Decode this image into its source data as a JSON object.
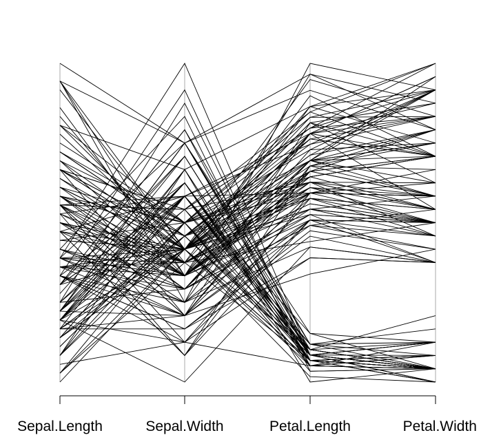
{
  "chart_data": {
    "type": "parallel-coordinates",
    "title": "",
    "xlabel": "",
    "ylabel": "",
    "axes": [
      "Sepal.Length",
      "Sepal.Width",
      "Petal.Length",
      "Petal.Width"
    ],
    "ranges": [
      [
        4.3,
        7.9
      ],
      [
        2.0,
        4.4
      ],
      [
        1.0,
        6.9
      ],
      [
        0.1,
        2.5
      ]
    ],
    "grid": false,
    "legend": "none",
    "colors": {
      "line": "#000000",
      "axis": "#aaaaaa",
      "frame": "#000000",
      "background": "#ffffff"
    },
    "rows": [
      [
        5.1,
        3.5,
        1.4,
        0.2
      ],
      [
        4.9,
        3.0,
        1.4,
        0.2
      ],
      [
        4.7,
        3.2,
        1.3,
        0.2
      ],
      [
        4.6,
        3.1,
        1.5,
        0.2
      ],
      [
        5.0,
        3.6,
        1.4,
        0.2
      ],
      [
        5.4,
        3.9,
        1.7,
        0.4
      ],
      [
        4.6,
        3.4,
        1.4,
        0.3
      ],
      [
        5.0,
        3.4,
        1.5,
        0.2
      ],
      [
        4.4,
        2.9,
        1.4,
        0.2
      ],
      [
        4.9,
        3.1,
        1.5,
        0.1
      ],
      [
        5.4,
        3.7,
        1.5,
        0.2
      ],
      [
        4.8,
        3.4,
        1.6,
        0.2
      ],
      [
        4.8,
        3.0,
        1.4,
        0.1
      ],
      [
        4.3,
        3.0,
        1.1,
        0.1
      ],
      [
        5.8,
        4.0,
        1.2,
        0.2
      ],
      [
        5.7,
        4.4,
        1.5,
        0.4
      ],
      [
        5.4,
        3.9,
        1.3,
        0.4
      ],
      [
        5.1,
        3.5,
        1.4,
        0.3
      ],
      [
        5.7,
        3.8,
        1.7,
        0.3
      ],
      [
        5.1,
        3.8,
        1.5,
        0.3
      ],
      [
        5.4,
        3.4,
        1.7,
        0.2
      ],
      [
        5.1,
        3.7,
        1.5,
        0.4
      ],
      [
        4.6,
        3.6,
        1.0,
        0.2
      ],
      [
        5.1,
        3.3,
        1.7,
        0.5
      ],
      [
        4.8,
        3.4,
        1.9,
        0.2
      ],
      [
        5.0,
        3.0,
        1.6,
        0.2
      ],
      [
        5.0,
        3.4,
        1.6,
        0.4
      ],
      [
        5.2,
        3.5,
        1.5,
        0.2
      ],
      [
        5.2,
        3.4,
        1.4,
        0.2
      ],
      [
        4.7,
        3.2,
        1.6,
        0.2
      ],
      [
        4.8,
        3.1,
        1.6,
        0.2
      ],
      [
        5.4,
        3.4,
        1.5,
        0.4
      ],
      [
        5.2,
        4.1,
        1.5,
        0.1
      ],
      [
        5.5,
        4.2,
        1.4,
        0.2
      ],
      [
        4.9,
        3.1,
        1.5,
        0.2
      ],
      [
        5.0,
        3.2,
        1.2,
        0.2
      ],
      [
        5.5,
        3.5,
        1.3,
        0.2
      ],
      [
        4.9,
        3.6,
        1.4,
        0.1
      ],
      [
        4.4,
        3.0,
        1.3,
        0.2
      ],
      [
        5.1,
        3.4,
        1.5,
        0.2
      ],
      [
        5.0,
        3.5,
        1.3,
        0.3
      ],
      [
        4.5,
        2.3,
        1.3,
        0.3
      ],
      [
        4.4,
        3.2,
        1.3,
        0.2
      ],
      [
        5.0,
        3.5,
        1.6,
        0.6
      ],
      [
        5.1,
        3.8,
        1.9,
        0.4
      ],
      [
        4.8,
        3.0,
        1.4,
        0.3
      ],
      [
        5.1,
        3.8,
        1.6,
        0.2
      ],
      [
        4.6,
        3.2,
        1.4,
        0.2
      ],
      [
        5.3,
        3.7,
        1.5,
        0.2
      ],
      [
        5.0,
        3.3,
        1.4,
        0.2
      ],
      [
        7.0,
        3.2,
        4.7,
        1.4
      ],
      [
        6.4,
        3.2,
        4.5,
        1.5
      ],
      [
        6.9,
        3.1,
        4.9,
        1.5
      ],
      [
        5.5,
        2.3,
        4.0,
        1.3
      ],
      [
        6.5,
        2.8,
        4.6,
        1.5
      ],
      [
        5.7,
        2.8,
        4.5,
        1.3
      ],
      [
        6.3,
        3.3,
        4.7,
        1.6
      ],
      [
        4.9,
        2.4,
        3.3,
        1.0
      ],
      [
        6.6,
        2.9,
        4.6,
        1.3
      ],
      [
        5.2,
        2.7,
        3.9,
        1.4
      ],
      [
        5.0,
        2.0,
        3.5,
        1.0
      ],
      [
        5.9,
        3.0,
        4.2,
        1.5
      ],
      [
        6.0,
        2.2,
        4.0,
        1.0
      ],
      [
        6.1,
        2.9,
        4.7,
        1.4
      ],
      [
        5.6,
        2.9,
        3.6,
        1.3
      ],
      [
        6.7,
        3.1,
        4.4,
        1.4
      ],
      [
        5.6,
        3.0,
        4.5,
        1.5
      ],
      [
        5.8,
        2.7,
        4.1,
        1.0
      ],
      [
        6.2,
        2.2,
        4.5,
        1.5
      ],
      [
        5.6,
        2.5,
        3.9,
        1.1
      ],
      [
        5.9,
        3.2,
        4.8,
        1.8
      ],
      [
        6.1,
        2.8,
        4.0,
        1.3
      ],
      [
        6.3,
        2.5,
        4.9,
        1.5
      ],
      [
        6.1,
        2.8,
        4.7,
        1.2
      ],
      [
        6.4,
        2.9,
        4.3,
        1.3
      ],
      [
        6.6,
        3.0,
        4.4,
        1.4
      ],
      [
        6.8,
        2.8,
        4.8,
        1.4
      ],
      [
        6.7,
        3.0,
        5.0,
        1.7
      ],
      [
        6.0,
        2.9,
        4.5,
        1.5
      ],
      [
        5.7,
        2.6,
        3.5,
        1.0
      ],
      [
        5.5,
        2.4,
        3.8,
        1.1
      ],
      [
        5.5,
        2.4,
        3.7,
        1.0
      ],
      [
        5.8,
        2.7,
        3.9,
        1.2
      ],
      [
        6.0,
        2.7,
        5.1,
        1.6
      ],
      [
        5.4,
        3.0,
        4.5,
        1.5
      ],
      [
        6.0,
        3.4,
        4.5,
        1.6
      ],
      [
        6.7,
        3.1,
        4.7,
        1.5
      ],
      [
        6.3,
        2.3,
        4.4,
        1.3
      ],
      [
        5.6,
        3.0,
        4.1,
        1.3
      ],
      [
        5.5,
        2.5,
        4.0,
        1.3
      ],
      [
        5.5,
        2.6,
        4.4,
        1.2
      ],
      [
        6.1,
        3.0,
        4.6,
        1.4
      ],
      [
        5.8,
        2.6,
        4.0,
        1.2
      ],
      [
        5.0,
        2.3,
        3.3,
        1.0
      ],
      [
        5.6,
        2.7,
        4.2,
        1.3
      ],
      [
        5.7,
        3.0,
        4.2,
        1.2
      ],
      [
        5.7,
        2.9,
        4.2,
        1.3
      ],
      [
        6.2,
        2.9,
        4.3,
        1.3
      ],
      [
        5.1,
        2.5,
        3.0,
        1.1
      ],
      [
        5.7,
        2.8,
        4.1,
        1.3
      ],
      [
        6.3,
        3.3,
        6.0,
        2.5
      ],
      [
        5.8,
        2.7,
        5.1,
        1.9
      ],
      [
        7.1,
        3.0,
        5.9,
        2.1
      ],
      [
        6.3,
        2.9,
        5.6,
        1.8
      ],
      [
        6.5,
        3.0,
        5.8,
        2.2
      ],
      [
        7.6,
        3.0,
        6.6,
        2.1
      ],
      [
        4.9,
        2.5,
        4.5,
        1.7
      ],
      [
        7.3,
        2.9,
        6.3,
        1.8
      ],
      [
        6.7,
        2.5,
        5.8,
        1.8
      ],
      [
        7.2,
        3.6,
        6.1,
        2.5
      ],
      [
        6.5,
        3.2,
        5.1,
        2.0
      ],
      [
        6.4,
        2.7,
        5.3,
        1.9
      ],
      [
        6.8,
        3.0,
        5.5,
        2.1
      ],
      [
        5.7,
        2.5,
        5.0,
        2.0
      ],
      [
        5.8,
        2.8,
        5.1,
        2.4
      ],
      [
        6.4,
        3.2,
        5.3,
        2.3
      ],
      [
        6.5,
        3.0,
        5.5,
        1.8
      ],
      [
        7.7,
        3.8,
        6.7,
        2.2
      ],
      [
        7.7,
        2.6,
        6.9,
        2.3
      ],
      [
        6.0,
        2.2,
        5.0,
        1.5
      ],
      [
        6.9,
        3.2,
        5.7,
        2.3
      ],
      [
        5.6,
        2.8,
        4.9,
        2.0
      ],
      [
        7.7,
        2.8,
        6.7,
        2.0
      ],
      [
        6.3,
        2.7,
        4.9,
        1.8
      ],
      [
        6.7,
        3.3,
        5.7,
        2.1
      ],
      [
        7.2,
        3.2,
        6.0,
        1.8
      ],
      [
        6.2,
        2.8,
        4.8,
        1.8
      ],
      [
        6.1,
        3.0,
        4.9,
        1.8
      ],
      [
        6.4,
        2.8,
        5.6,
        2.1
      ],
      [
        7.2,
        3.0,
        5.8,
        1.6
      ],
      [
        7.4,
        2.8,
        6.1,
        1.9
      ],
      [
        7.9,
        3.8,
        6.4,
        2.0
      ],
      [
        6.4,
        2.8,
        5.6,
        2.2
      ],
      [
        6.3,
        2.8,
        5.1,
        1.5
      ],
      [
        6.1,
        2.6,
        5.6,
        1.4
      ],
      [
        7.7,
        3.0,
        6.1,
        2.3
      ],
      [
        6.3,
        3.4,
        5.6,
        2.4
      ],
      [
        6.4,
        3.1,
        5.5,
        1.8
      ],
      [
        6.0,
        3.0,
        4.8,
        1.8
      ],
      [
        6.9,
        3.1,
        5.4,
        2.1
      ],
      [
        6.7,
        3.1,
        5.6,
        2.4
      ],
      [
        6.9,
        3.1,
        5.1,
        2.3
      ],
      [
        5.8,
        2.7,
        5.1,
        1.9
      ],
      [
        6.8,
        3.2,
        5.9,
        2.3
      ],
      [
        6.7,
        3.3,
        5.7,
        2.5
      ],
      [
        6.7,
        3.0,
        5.2,
        2.3
      ],
      [
        6.3,
        2.5,
        5.0,
        1.9
      ],
      [
        6.5,
        3.0,
        5.2,
        2.0
      ],
      [
        6.2,
        3.4,
        5.4,
        2.3
      ],
      [
        5.9,
        3.0,
        5.1,
        1.8
      ]
    ]
  }
}
